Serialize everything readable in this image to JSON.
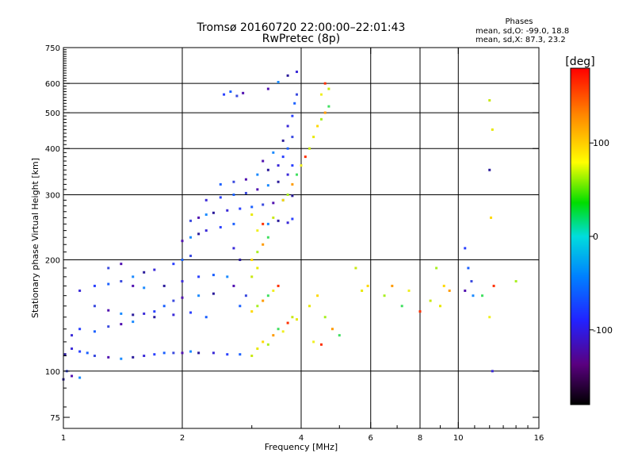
{
  "title_line1": "Tromsø 20160720 22:00:00–22:01:43",
  "title_line2": "RwPretec (8p)",
  "phases_heading": "Phases",
  "phases_line1": "mean, sd,O: -99.0, 18.8",
  "phases_line2": "mean, sd,X:  87.3, 23.2",
  "chart_data": {
    "type": "scatter",
    "xlabel": "Frequency [MHz]",
    "ylabel": "Stationary phase Virtual Height [km]",
    "x_scale": "log",
    "y_scale": "log",
    "xlim": [
      1,
      16
    ],
    "ylim": [
      70,
      750
    ],
    "x_ticks": [
      1,
      2,
      4,
      6,
      8,
      10,
      16
    ],
    "y_ticks": [
      75,
      100,
      200,
      300,
      400,
      500,
      600,
      750
    ],
    "x_gridlines": [
      2,
      4,
      6,
      8,
      10
    ],
    "y_gridlines": [
      100,
      200,
      300,
      400,
      500,
      600
    ],
    "colorbar": {
      "label": "[deg]",
      "ticks": [
        100,
        0,
        -100
      ],
      "range": [
        -180,
        180
      ],
      "colormap": [
        "#000000",
        "#5a0080",
        "#2222ff",
        "#0080ff",
        "#00dddd",
        "#00dd00",
        "#ffff00",
        "#ff8800",
        "#ff0000"
      ]
    },
    "series": [
      {
        "polarity": "O",
        "points": [
          [
            1.01,
            111
          ],
          [
            1.05,
            115
          ],
          [
            1.1,
            113
          ],
          [
            1.15,
            112
          ],
          [
            1.2,
            110
          ],
          [
            1.3,
            109
          ],
          [
            1.4,
            108
          ],
          [
            1.5,
            109
          ],
          [
            1.6,
            110
          ],
          [
            1.7,
            111
          ],
          [
            1.8,
            112
          ],
          [
            1.9,
            112
          ],
          [
            2.0,
            112
          ],
          [
            2.1,
            113
          ],
          [
            2.2,
            112
          ],
          [
            2.4,
            112
          ],
          [
            2.6,
            111
          ],
          [
            2.8,
            111
          ],
          [
            1.02,
            100
          ],
          [
            1.05,
            97
          ],
          [
            1.1,
            96
          ],
          [
            1.0,
            95
          ],
          [
            1.05,
            125
          ],
          [
            1.1,
            130
          ],
          [
            1.2,
            128
          ],
          [
            1.3,
            132
          ],
          [
            1.4,
            134
          ],
          [
            1.5,
            136
          ],
          [
            1.7,
            140
          ],
          [
            1.9,
            142
          ],
          [
            2.1,
            144
          ],
          [
            2.3,
            140
          ],
          [
            1.2,
            150
          ],
          [
            1.3,
            146
          ],
          [
            1.4,
            143
          ],
          [
            1.5,
            142
          ],
          [
            1.6,
            143
          ],
          [
            1.7,
            145
          ],
          [
            1.8,
            150
          ],
          [
            1.9,
            155
          ],
          [
            2.0,
            158
          ],
          [
            2.2,
            160
          ],
          [
            2.4,
            162
          ],
          [
            1.1,
            165
          ],
          [
            1.2,
            170
          ],
          [
            1.3,
            172
          ],
          [
            1.4,
            175
          ],
          [
            1.5,
            170
          ],
          [
            1.6,
            168
          ],
          [
            1.8,
            170
          ],
          [
            2.0,
            175
          ],
          [
            2.2,
            180
          ],
          [
            2.4,
            182
          ],
          [
            1.3,
            190
          ],
          [
            1.4,
            195
          ],
          [
            1.5,
            180
          ],
          [
            1.6,
            185
          ],
          [
            1.7,
            188
          ],
          [
            1.9,
            195
          ],
          [
            2.0,
            200
          ],
          [
            2.1,
            205
          ],
          [
            2.0,
            225
          ],
          [
            2.1,
            230
          ],
          [
            2.2,
            235
          ],
          [
            2.3,
            240
          ],
          [
            2.5,
            245
          ],
          [
            2.7,
            250
          ],
          [
            2.1,
            255
          ],
          [
            2.2,
            260
          ],
          [
            2.3,
            265
          ],
          [
            2.4,
            268
          ],
          [
            2.6,
            272
          ],
          [
            2.8,
            275
          ],
          [
            3.0,
            278
          ],
          [
            3.2,
            282
          ],
          [
            3.4,
            285
          ],
          [
            3.6,
            290
          ],
          [
            3.8,
            298
          ],
          [
            2.3,
            290
          ],
          [
            2.5,
            295
          ],
          [
            2.7,
            300
          ],
          [
            2.9,
            303
          ],
          [
            3.1,
            310
          ],
          [
            3.3,
            318
          ],
          [
            3.5,
            325
          ],
          [
            3.7,
            340
          ],
          [
            3.8,
            360
          ],
          [
            2.5,
            320
          ],
          [
            2.7,
            325
          ],
          [
            2.9,
            330
          ],
          [
            3.1,
            340
          ],
          [
            3.3,
            350
          ],
          [
            3.5,
            360
          ],
          [
            3.6,
            380
          ],
          [
            3.7,
            400
          ],
          [
            3.8,
            430
          ],
          [
            3.2,
            370
          ],
          [
            3.4,
            390
          ],
          [
            3.6,
            420
          ],
          [
            3.7,
            460
          ],
          [
            3.8,
            490
          ],
          [
            3.85,
            530
          ],
          [
            3.9,
            560
          ],
          [
            3.3,
            580
          ],
          [
            3.5,
            605
          ],
          [
            3.7,
            630
          ],
          [
            3.9,
            645
          ],
          [
            2.55,
            560
          ],
          [
            2.65,
            570
          ],
          [
            2.75,
            555
          ],
          [
            2.85,
            565
          ],
          [
            3.3,
            250
          ],
          [
            3.5,
            255
          ],
          [
            3.7,
            252
          ],
          [
            3.8,
            258
          ],
          [
            2.8,
            150
          ],
          [
            2.9,
            160
          ],
          [
            2.7,
            170
          ],
          [
            2.6,
            180
          ],
          [
            2.8,
            200
          ],
          [
            2.7,
            215
          ],
          [
            10.4,
            215
          ],
          [
            10.6,
            190
          ],
          [
            10.8,
            175
          ],
          [
            10.4,
            165
          ],
          [
            10.9,
            160
          ],
          [
            12.0,
            350
          ],
          [
            12.2,
            100
          ]
        ]
      },
      {
        "polarity": "X",
        "points": [
          [
            3.0,
            110
          ],
          [
            3.1,
            115
          ],
          [
            3.2,
            120
          ],
          [
            3.3,
            118
          ],
          [
            3.4,
            125
          ],
          [
            3.5,
            130
          ],
          [
            3.6,
            128
          ],
          [
            3.7,
            135
          ],
          [
            3.8,
            140
          ],
          [
            3.9,
            138
          ],
          [
            3.0,
            145
          ],
          [
            3.1,
            150
          ],
          [
            3.2,
            155
          ],
          [
            3.3,
            160
          ],
          [
            3.4,
            165
          ],
          [
            3.5,
            170
          ],
          [
            3.0,
            180
          ],
          [
            3.1,
            190
          ],
          [
            3.0,
            200
          ],
          [
            3.1,
            210
          ],
          [
            3.2,
            220
          ],
          [
            3.3,
            230
          ],
          [
            3.1,
            240
          ],
          [
            3.2,
            250
          ],
          [
            3.4,
            260
          ],
          [
            3.0,
            265
          ],
          [
            3.6,
            290
          ],
          [
            3.7,
            300
          ],
          [
            3.8,
            320
          ],
          [
            3.9,
            340
          ],
          [
            4.0,
            360
          ],
          [
            4.1,
            380
          ],
          [
            4.2,
            400
          ],
          [
            4.3,
            430
          ],
          [
            4.4,
            460
          ],
          [
            4.5,
            480
          ],
          [
            4.6,
            500
          ],
          [
            4.7,
            520
          ],
          [
            4.5,
            560
          ],
          [
            4.6,
            600
          ],
          [
            4.7,
            580
          ],
          [
            4.2,
            150
          ],
          [
            4.4,
            160
          ],
          [
            4.6,
            140
          ],
          [
            4.8,
            130
          ],
          [
            5.0,
            125
          ],
          [
            4.3,
            120
          ],
          [
            4.5,
            118
          ],
          [
            5.5,
            190
          ],
          [
            5.7,
            165
          ],
          [
            5.9,
            170
          ],
          [
            6.5,
            160
          ],
          [
            6.8,
            170
          ],
          [
            7.2,
            150
          ],
          [
            7.5,
            165
          ],
          [
            8.0,
            145
          ],
          [
            8.5,
            155
          ],
          [
            9.0,
            150
          ],
          [
            9.2,
            170
          ],
          [
            8.8,
            190
          ],
          [
            9.5,
            165
          ],
          [
            11.5,
            160
          ],
          [
            12.0,
            140
          ],
          [
            12.3,
            170
          ],
          [
            12.0,
            540
          ],
          [
            12.2,
            450
          ],
          [
            12.1,
            260
          ],
          [
            14.0,
            175
          ]
        ]
      }
    ]
  }
}
